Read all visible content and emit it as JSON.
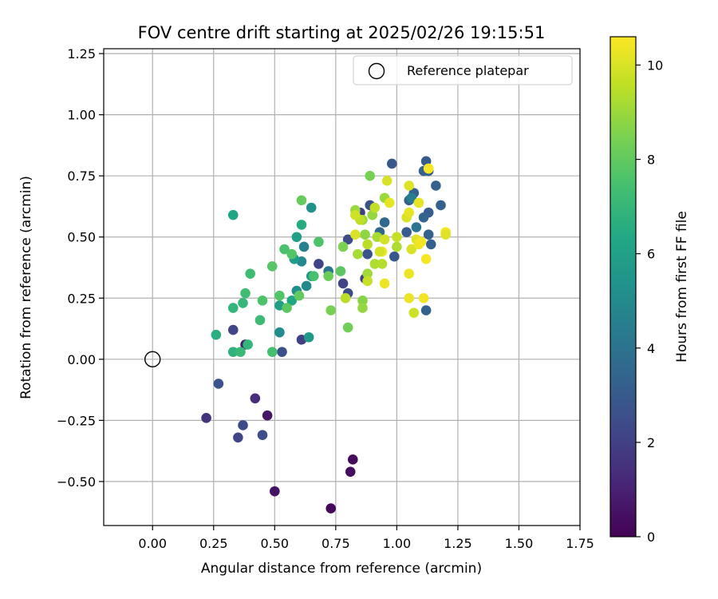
{
  "chart_data": {
    "type": "scatter",
    "title": "FOV centre drift starting at 2025/02/26 19:15:51",
    "xlabel": "Angular distance from reference (arcmin)",
    "ylabel": "Rotation from reference (arcmin)",
    "xlim": [
      -0.2,
      1.75
    ],
    "ylim": [
      -0.68,
      1.27
    ],
    "xticks": [
      "0.00",
      "0.25",
      "0.50",
      "0.75",
      "1.00",
      "1.25",
      "1.50",
      "1.75"
    ],
    "yticks": [
      "-0.50",
      "-0.25",
      "0.00",
      "0.25",
      "0.50",
      "0.75",
      "1.00",
      "1.25"
    ],
    "grid": true,
    "colorbar": {
      "label": "Hours from first FF file",
      "range": [
        0,
        10.6
      ],
      "ticks": [
        "0",
        "2",
        "4",
        "6",
        "8",
        "10"
      ],
      "colormap": "viridis"
    },
    "legend": {
      "placement": "top-right",
      "entries": [
        {
          "label": "Reference platepar",
          "marker": "open-circle"
        }
      ]
    },
    "reference_point": {
      "x": 0.0,
      "y": 0.0
    },
    "points": [
      {
        "x": 0.82,
        "y": -0.41,
        "c": 0.3
      },
      {
        "x": 0.81,
        "y": -0.46,
        "c": 0.4
      },
      {
        "x": 0.73,
        "y": -0.61,
        "c": 0.2
      },
      {
        "x": 0.5,
        "y": -0.54,
        "c": 0.5
      },
      {
        "x": 0.47,
        "y": -0.23,
        "c": 0.6
      },
      {
        "x": 0.38,
        "y": 0.06,
        "c": 0.8
      },
      {
        "x": 0.42,
        "y": -0.16,
        "c": 1.4
      },
      {
        "x": 0.22,
        "y": -0.24,
        "c": 1.6
      },
      {
        "x": 0.35,
        "y": -0.32,
        "c": 2.2
      },
      {
        "x": 0.37,
        "y": -0.27,
        "c": 2.4
      },
      {
        "x": 0.45,
        "y": -0.31,
        "c": 2.5
      },
      {
        "x": 0.27,
        "y": -0.1,
        "c": 2.7
      },
      {
        "x": 0.33,
        "y": 0.12,
        "c": 2.2
      },
      {
        "x": 0.53,
        "y": 0.03,
        "c": 2.6
      },
      {
        "x": 0.61,
        "y": 0.08,
        "c": 2.0
      },
      {
        "x": 0.68,
        "y": 0.39,
        "c": 2.1
      },
      {
        "x": 0.78,
        "y": 0.31,
        "c": 2.1
      },
      {
        "x": 0.8,
        "y": 0.27,
        "c": 2.4
      },
      {
        "x": 0.87,
        "y": 0.33,
        "c": 2.0
      },
      {
        "x": 0.88,
        "y": 0.43,
        "c": 2.7
      },
      {
        "x": 0.8,
        "y": 0.49,
        "c": 2.4
      },
      {
        "x": 0.85,
        "y": 0.6,
        "c": 2.0
      },
      {
        "x": 0.89,
        "y": 0.63,
        "c": 2.6
      },
      {
        "x": 0.98,
        "y": 0.8,
        "c": 2.9
      },
      {
        "x": 0.99,
        "y": 0.42,
        "c": 2.9
      },
      {
        "x": 1.04,
        "y": 0.52,
        "c": 3.0
      },
      {
        "x": 1.05,
        "y": 0.65,
        "c": 3.2
      },
      {
        "x": 1.07,
        "y": 0.68,
        "c": 3.3
      },
      {
        "x": 1.12,
        "y": 0.81,
        "c": 3.0
      },
      {
        "x": 1.13,
        "y": 0.77,
        "c": 3.2
      },
      {
        "x": 1.11,
        "y": 0.77,
        "c": 3.3
      },
      {
        "x": 1.13,
        "y": 0.6,
        "c": 3.1
      },
      {
        "x": 1.18,
        "y": 0.63,
        "c": 3.2
      },
      {
        "x": 1.16,
        "y": 0.71,
        "c": 3.3
      },
      {
        "x": 1.13,
        "y": 0.51,
        "c": 3.3
      },
      {
        "x": 1.14,
        "y": 0.47,
        "c": 3.2
      },
      {
        "x": 1.12,
        "y": 0.2,
        "c": 3.3
      },
      {
        "x": 1.11,
        "y": 0.58,
        "c": 3.4
      },
      {
        "x": 1.08,
        "y": 0.54,
        "c": 4.1
      },
      {
        "x": 1.06,
        "y": 0.66,
        "c": 4.5
      },
      {
        "x": 0.95,
        "y": 0.56,
        "c": 3.6
      },
      {
        "x": 0.93,
        "y": 0.52,
        "c": 3.6
      },
      {
        "x": 0.72,
        "y": 0.36,
        "c": 4.1
      },
      {
        "x": 0.62,
        "y": 0.46,
        "c": 4.6
      },
      {
        "x": 0.61,
        "y": 0.4,
        "c": 4.9
      },
      {
        "x": 0.63,
        "y": 0.3,
        "c": 4.9
      },
      {
        "x": 0.59,
        "y": 0.28,
        "c": 5.2
      },
      {
        "x": 0.65,
        "y": 0.62,
        "c": 5.3
      },
      {
        "x": 0.65,
        "y": 0.34,
        "c": 5.6
      },
      {
        "x": 0.58,
        "y": 0.41,
        "c": 5.8
      },
      {
        "x": 0.59,
        "y": 0.5,
        "c": 6.0
      },
      {
        "x": 0.61,
        "y": 0.55,
        "c": 6.5
      },
      {
        "x": 0.64,
        "y": 0.09,
        "c": 5.7
      },
      {
        "x": 0.52,
        "y": 0.11,
        "c": 5.1
      },
      {
        "x": 0.52,
        "y": 0.22,
        "c": 5.9
      },
      {
        "x": 0.57,
        "y": 0.24,
        "c": 6.3
      },
      {
        "x": 0.33,
        "y": 0.59,
        "c": 6.2
      },
      {
        "x": 0.26,
        "y": 0.1,
        "c": 6.6
      },
      {
        "x": 0.33,
        "y": 0.03,
        "c": 6.8
      },
      {
        "x": 0.39,
        "y": 0.06,
        "c": 6.9
      },
      {
        "x": 0.36,
        "y": 0.03,
        "c": 7.1
      },
      {
        "x": 0.33,
        "y": 0.21,
        "c": 6.9
      },
      {
        "x": 0.37,
        "y": 0.23,
        "c": 7.0
      },
      {
        "x": 0.38,
        "y": 0.27,
        "c": 7.3
      },
      {
        "x": 0.4,
        "y": 0.35,
        "c": 7.3
      },
      {
        "x": 0.44,
        "y": 0.16,
        "c": 7.2
      },
      {
        "x": 0.45,
        "y": 0.24,
        "c": 7.6
      },
      {
        "x": 0.49,
        "y": 0.03,
        "c": 7.4
      },
      {
        "x": 0.49,
        "y": 0.38,
        "c": 7.8
      },
      {
        "x": 0.52,
        "y": 0.26,
        "c": 7.7
      },
      {
        "x": 0.54,
        "y": 0.45,
        "c": 7.5
      },
      {
        "x": 0.55,
        "y": 0.21,
        "c": 7.9
      },
      {
        "x": 0.57,
        "y": 0.43,
        "c": 7.7
      },
      {
        "x": 0.6,
        "y": 0.26,
        "c": 8.0
      },
      {
        "x": 0.61,
        "y": 0.65,
        "c": 8.1
      },
      {
        "x": 0.66,
        "y": 0.34,
        "c": 7.5
      },
      {
        "x": 0.68,
        "y": 0.48,
        "c": 7.6
      },
      {
        "x": 0.72,
        "y": 0.34,
        "c": 8.2
      },
      {
        "x": 0.73,
        "y": 0.2,
        "c": 8.4
      },
      {
        "x": 0.78,
        "y": 0.46,
        "c": 8.5
      },
      {
        "x": 0.77,
        "y": 0.36,
        "c": 7.9
      },
      {
        "x": 0.8,
        "y": 0.13,
        "c": 8.3
      },
      {
        "x": 0.79,
        "y": 0.25,
        "c": 9.5
      },
      {
        "x": 0.86,
        "y": 0.24,
        "c": 8.7
      },
      {
        "x": 0.86,
        "y": 0.21,
        "c": 8.9
      },
      {
        "x": 0.88,
        "y": 0.35,
        "c": 9.1
      },
      {
        "x": 0.87,
        "y": 0.51,
        "c": 8.8
      },
      {
        "x": 0.86,
        "y": 0.57,
        "c": 9.0
      },
      {
        "x": 0.89,
        "y": 0.75,
        "c": 8.4
      },
      {
        "x": 0.9,
        "y": 0.59,
        "c": 8.9
      },
      {
        "x": 0.91,
        "y": 0.62,
        "c": 9.6
      },
      {
        "x": 0.92,
        "y": 0.5,
        "c": 9.2
      },
      {
        "x": 0.91,
        "y": 0.39,
        "c": 9.3
      },
      {
        "x": 0.94,
        "y": 0.39,
        "c": 9.4
      },
      {
        "x": 0.95,
        "y": 0.66,
        "c": 9.0
      },
      {
        "x": 0.96,
        "y": 0.73,
        "c": 10.0
      },
      {
        "x": 0.97,
        "y": 0.64,
        "c": 10.2
      },
      {
        "x": 0.95,
        "y": 0.31,
        "c": 10.3
      },
      {
        "x": 0.94,
        "y": 0.44,
        "c": 10.4
      },
      {
        "x": 0.83,
        "y": 0.61,
        "c": 9.0
      },
      {
        "x": 0.84,
        "y": 0.43,
        "c": 9.2
      },
      {
        "x": 0.85,
        "y": 0.57,
        "c": 9.6
      },
      {
        "x": 0.88,
        "y": 0.47,
        "c": 9.5
      },
      {
        "x": 0.88,
        "y": 0.32,
        "c": 9.7
      },
      {
        "x": 0.83,
        "y": 0.59,
        "c": 9.8
      },
      {
        "x": 0.83,
        "y": 0.51,
        "c": 10.0
      },
      {
        "x": 0.93,
        "y": 0.44,
        "c": 9.9
      },
      {
        "x": 0.95,
        "y": 0.49,
        "c": 9.9
      },
      {
        "x": 1.0,
        "y": 0.46,
        "c": 9.3
      },
      {
        "x": 1.0,
        "y": 0.5,
        "c": 9.7
      },
      {
        "x": 1.04,
        "y": 0.58,
        "c": 10.0
      },
      {
        "x": 1.05,
        "y": 0.71,
        "c": 10.1
      },
      {
        "x": 1.05,
        "y": 0.6,
        "c": 10.2
      },
      {
        "x": 1.05,
        "y": 0.35,
        "c": 10.3
      },
      {
        "x": 1.06,
        "y": 0.45,
        "c": 10.0
      },
      {
        "x": 1.07,
        "y": 0.19,
        "c": 9.8
      },
      {
        "x": 1.08,
        "y": 0.49,
        "c": 10.1
      },
      {
        "x": 1.09,
        "y": 0.64,
        "c": 10.2
      },
      {
        "x": 1.09,
        "y": 0.47,
        "c": 10.3
      },
      {
        "x": 1.1,
        "y": 0.48,
        "c": 10.4
      },
      {
        "x": 1.11,
        "y": 0.25,
        "c": 10.4
      },
      {
        "x": 1.05,
        "y": 0.25,
        "c": 10.3
      },
      {
        "x": 1.12,
        "y": 0.41,
        "c": 10.5
      },
      {
        "x": 1.13,
        "y": 0.78,
        "c": 10.2
      },
      {
        "x": 1.2,
        "y": 0.52,
        "c": 10.5
      },
      {
        "x": 1.2,
        "y": 0.51,
        "c": 10.1
      },
      {
        "x": 1.13,
        "y": 0.78,
        "c": 10.5
      }
    ]
  }
}
